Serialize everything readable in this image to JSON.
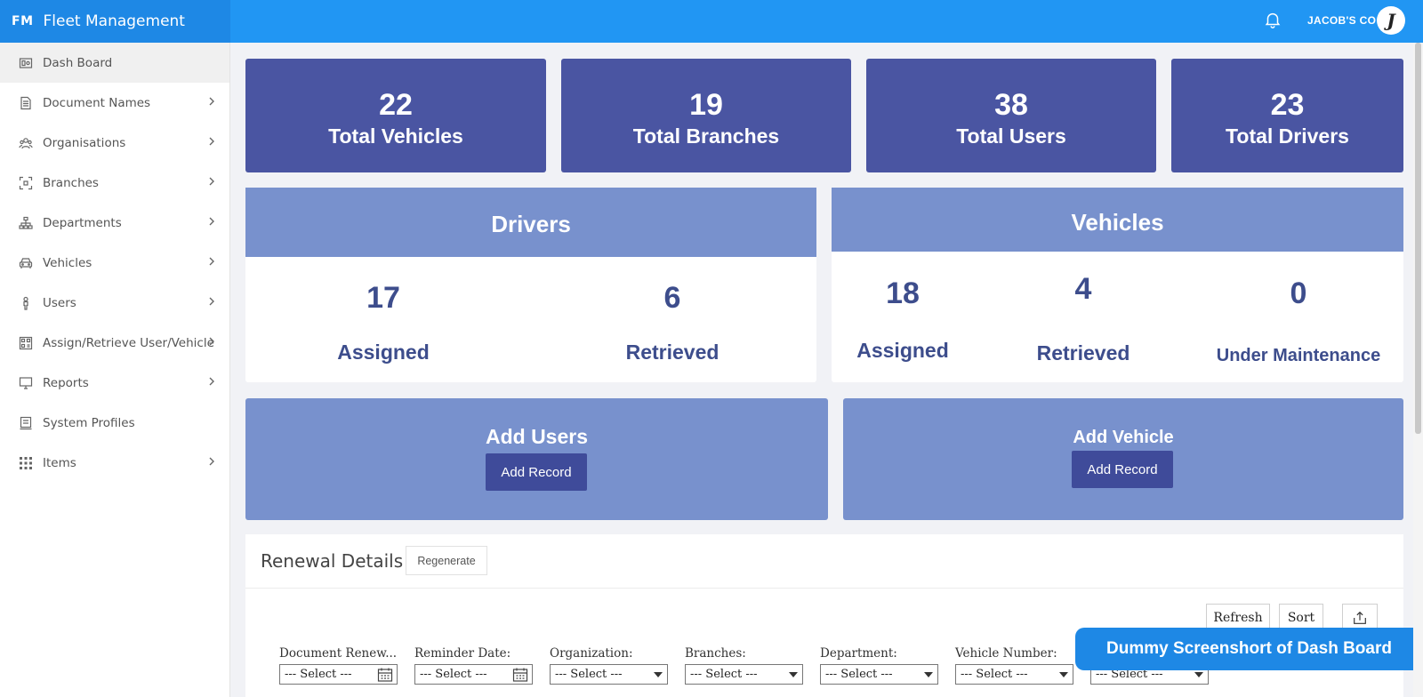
{
  "brand": {
    "abbr": "FM",
    "title": "Fleet Management"
  },
  "header": {
    "company": "JACOB'S CO",
    "avatar_letter": "J",
    "notification_icon": "bell-icon"
  },
  "sidebar": {
    "items": [
      {
        "label": "Dash Board",
        "icon": "dashboard-icon",
        "active": true,
        "has_children": false
      },
      {
        "label": "Document Names",
        "icon": "document-icon",
        "has_children": true
      },
      {
        "label": "Organisations",
        "icon": "organisation-icon",
        "has_children": true
      },
      {
        "label": "Branches",
        "icon": "branch-icon",
        "has_children": true
      },
      {
        "label": "Departments",
        "icon": "sitemap-icon",
        "has_children": true
      },
      {
        "label": "Vehicles",
        "icon": "car-icon",
        "has_children": true
      },
      {
        "label": "Users",
        "icon": "user-icon",
        "has_children": true
      },
      {
        "label": "Assign/Retrieve User/Vehicle",
        "icon": "assign-icon",
        "has_children": true
      },
      {
        "label": "Reports",
        "icon": "monitor-icon",
        "has_children": true
      },
      {
        "label": "System Profiles",
        "icon": "profile-icon",
        "has_children": false
      },
      {
        "label": "Items",
        "icon": "grid-icon",
        "has_children": true
      }
    ]
  },
  "stats": [
    {
      "value": "22",
      "label": "Total Vehicles"
    },
    {
      "value": "19",
      "label": "Total Branches"
    },
    {
      "value": "38",
      "label": "Total Users"
    },
    {
      "value": "23",
      "label": "Total Drivers"
    }
  ],
  "drivers_panel": {
    "title": "Drivers",
    "assigned": {
      "value": "17",
      "label": "Assigned"
    },
    "retrieved": {
      "value": "6",
      "label": "Retrieved"
    }
  },
  "vehicles_panel": {
    "title": "Vehicles",
    "assigned": {
      "value": "18",
      "label": "Assigned"
    },
    "retrieved": {
      "value": "4",
      "label": "Retrieved"
    },
    "maintenance": {
      "value": "0",
      "label": "Under Maintenance"
    }
  },
  "actions": {
    "users": {
      "title": "Add Users",
      "button": "Add Record"
    },
    "vehicle": {
      "title": "Add Vehicle",
      "button": "Add Record"
    }
  },
  "renewal": {
    "title": "Renewal Details",
    "regenerate": "Regenerate",
    "refresh": "Refresh",
    "sort": "Sort",
    "export_icon": "export-icon",
    "filters": [
      {
        "label": "Document Renew...",
        "value": "--- Select ---",
        "type": "date"
      },
      {
        "label": "Reminder Date:",
        "value": "--- Select ---",
        "type": "date"
      },
      {
        "label": "Organization:",
        "value": "--- Select ---",
        "type": "select"
      },
      {
        "label": "Branches:",
        "value": "--- Select ---",
        "type": "select"
      },
      {
        "label": "Department:",
        "value": "--- Select ---",
        "type": "select"
      },
      {
        "label": "Vehicle Number:",
        "value": "--- Select ---",
        "type": "select"
      },
      {
        "label": "",
        "value": "--- Select ---",
        "type": "select"
      }
    ]
  },
  "watermark": "Dummy  Screenshort of Dash Board",
  "colors": {
    "header": "#2196f3",
    "brand": "#1e88e5",
    "card": "#4a55a2",
    "panel_head": "#7891cd",
    "metric_text": "#3d4d8c"
  }
}
